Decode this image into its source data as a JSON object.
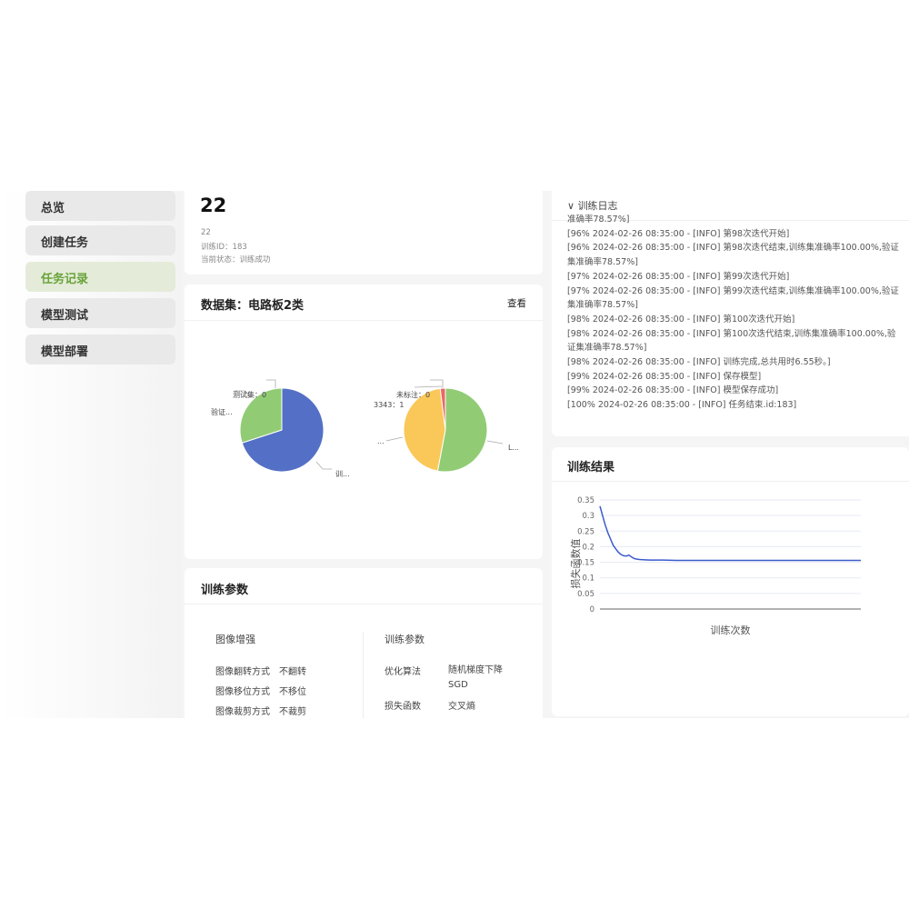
{
  "sidebar": {
    "items": [
      {
        "label": "总览"
      },
      {
        "label": "创建任务"
      },
      {
        "label": "任务记录",
        "active": true
      },
      {
        "label": "模型测试"
      },
      {
        "label": "模型部署"
      }
    ]
  },
  "task": {
    "title": "22",
    "name": "22",
    "train_id": "训练ID：183",
    "status": "当前状态：训练成功"
  },
  "dataset": {
    "title": "数据集：电路板2类",
    "view_label": "查看",
    "pie_split": {
      "slices": [
        {
          "label": "训...",
          "fraction": 0.7,
          "color": "#5470c6"
        },
        {
          "label": "验证...",
          "fraction": 0.3,
          "color": "#91cc75"
        },
        {
          "label": "测试集：0",
          "fraction": 0,
          "color": "#fac858"
        }
      ]
    },
    "pie_labels": {
      "slices": [
        {
          "label": "L...",
          "fraction": 0.53,
          "color": "#91cc75"
        },
        {
          "label": "...",
          "fraction": 0.45,
          "color": "#fac858"
        },
        {
          "label": "3343：1",
          "fraction": 0.02,
          "color": "#ee6666"
        },
        {
          "label": "未标注：0",
          "fraction": 0,
          "color": "#5470c6"
        }
      ]
    }
  },
  "params": {
    "title": "训练参数",
    "aug": {
      "title": "图像增强",
      "rows": [
        {
          "k": "图像翻转方式",
          "v": "不翻转"
        },
        {
          "k": "图像移位方式",
          "v": "不移位"
        },
        {
          "k": "图像裁剪方式",
          "v": "不裁剪"
        }
      ]
    },
    "train": {
      "title": "训练参数",
      "rows": [
        {
          "k": "优化算法",
          "v": "随机梯度下降SGD"
        },
        {
          "k": "损失函数",
          "v": "交叉熵"
        }
      ]
    }
  },
  "log": {
    "title": "训练日志",
    "lines": [
      "准确率78.57%]",
      "[96% 2024-02-26 08:35:00 - [INFO] 第98次迭代开始]",
      "[96% 2024-02-26 08:35:00 - [INFO] 第98次迭代结束,训练集准确率100.00%,验证集准确率78.57%]",
      "[97% 2024-02-26 08:35:00 - [INFO] 第99次迭代开始]",
      "[97% 2024-02-26 08:35:00 - [INFO] 第99次迭代结束,训练集准确率100.00%,验证集准确率78.57%]",
      "[98% 2024-02-26 08:35:00 - [INFO] 第100次迭代开始]",
      "[98% 2024-02-26 08:35:00 - [INFO] 第100次迭代结束,训练集准确率100.00%,验证集准确率78.57%]",
      "[98% 2024-02-26 08:35:00 - [INFO] 训练完成,总共用时6.55秒。]",
      "[99% 2024-02-26 08:35:00 - [INFO] 保存模型]",
      "[99% 2024-02-26 08:35:00 - [INFO] 模型保存成功]",
      "[100% 2024-02-26 08:35:00 - [INFO] 任务结束.id:183]"
    ]
  },
  "result": {
    "title": "训练结果"
  },
  "chart_data": {
    "type": "line",
    "xlabel": "训练次数",
    "ylabel": "损失函数值",
    "ylim": [
      0,
      0.35
    ],
    "yticks": [
      "0",
      "0.05",
      "0.1",
      "0.15",
      "0.2",
      "0.25",
      "0.3",
      "0.35"
    ],
    "grid": true,
    "color": "#3b5bcc",
    "x": [
      1,
      2,
      3,
      4,
      5,
      6,
      7,
      8,
      9,
      10,
      11,
      12,
      13,
      14,
      15,
      16,
      18,
      20,
      25,
      30,
      40,
      50,
      60,
      70,
      80,
      90,
      100
    ],
    "values": [
      0.33,
      0.3,
      0.27,
      0.245,
      0.225,
      0.205,
      0.193,
      0.182,
      0.175,
      0.171,
      0.17,
      0.173,
      0.167,
      0.162,
      0.16,
      0.159,
      0.158,
      0.157,
      0.157,
      0.156,
      0.156,
      0.156,
      0.156,
      0.156,
      0.156,
      0.156,
      0.156
    ]
  }
}
